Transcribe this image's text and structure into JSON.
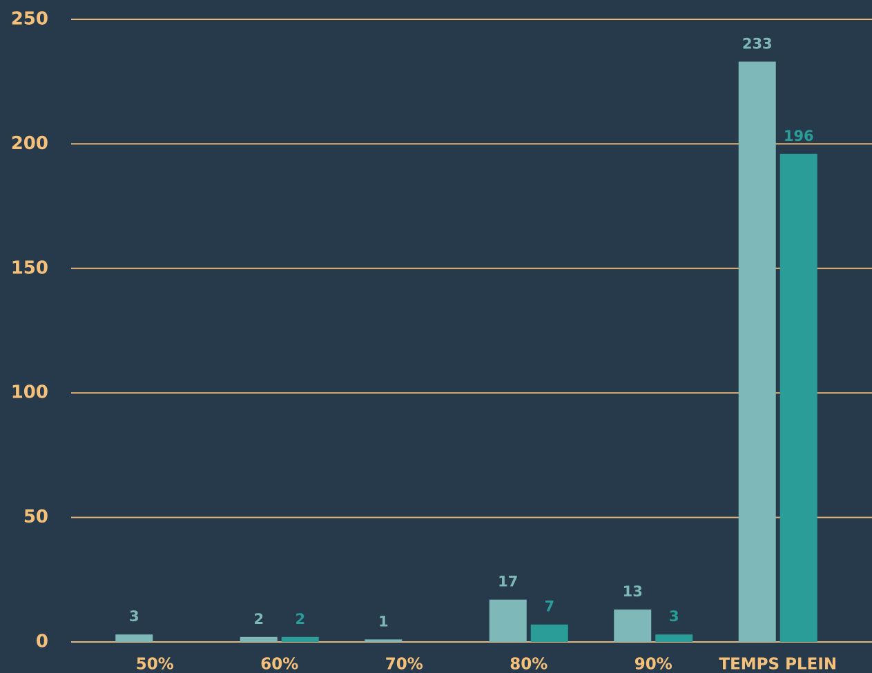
{
  "chart_data": {
    "type": "bar",
    "categories": [
      "50%",
      "60%",
      "70%",
      "80%",
      "90%",
      "TEMPS PLEIN"
    ],
    "series": [
      {
        "color": "#7fb8b8",
        "values": [
          3,
          2,
          1,
          17,
          13,
          233
        ]
      },
      {
        "color": "#2a9d98",
        "values": [
          null,
          2,
          null,
          7,
          3,
          196
        ]
      }
    ],
    "ylim": [
      0,
      250
    ],
    "yticks": [
      0,
      50,
      100,
      150,
      200,
      250
    ],
    "grid": true
  }
}
